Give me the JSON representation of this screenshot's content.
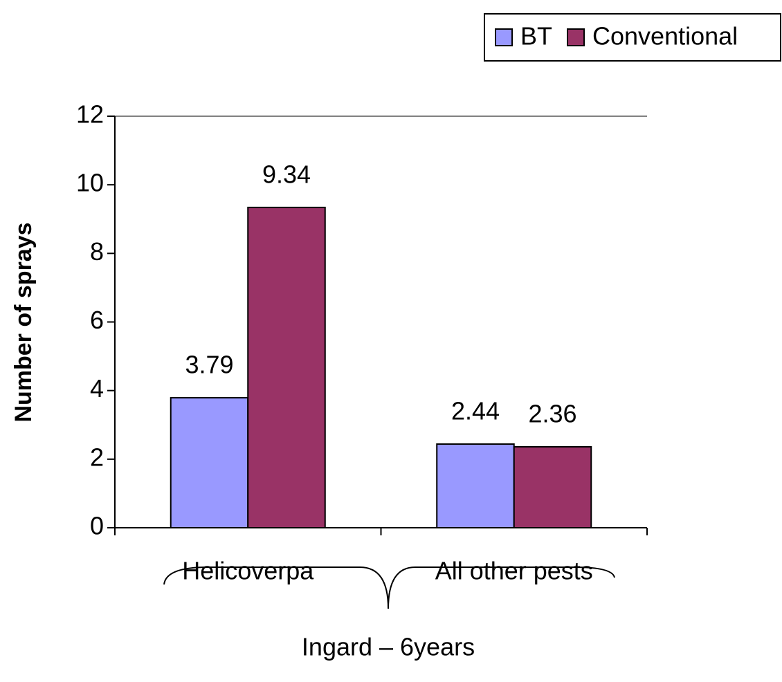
{
  "chart_data": {
    "type": "bar",
    "y_axis_label": "Number of sprays",
    "categories": [
      "Helicoverpa",
      "All other pests"
    ],
    "series": [
      {
        "name": "BT",
        "color": "#9999ff",
        "values": [
          3.79,
          2.44
        ]
      },
      {
        "name": "Conventional",
        "color": "#993366",
        "values": [
          9.34,
          2.36
        ]
      }
    ],
    "annotation": "Ingard – 6years",
    "ylim": [
      0,
      12
    ],
    "yticks": [
      0,
      2,
      4,
      6,
      8,
      10,
      12
    ],
    "grid": false,
    "legend": "top-right"
  }
}
